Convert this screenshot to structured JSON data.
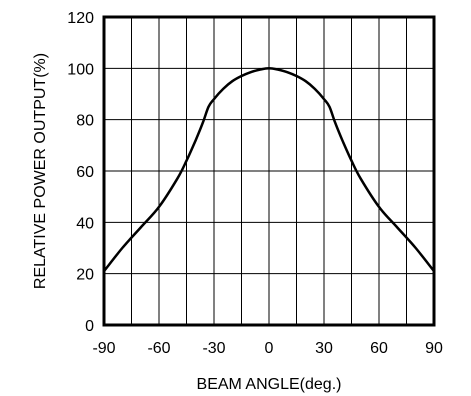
{
  "chart_data": {
    "type": "line",
    "title": "",
    "xlabel": "BEAM ANGLE(deg.)",
    "ylabel": "RELATIVE POWER OUTPUT(%)",
    "xlim": [
      -90,
      90
    ],
    "ylim": [
      0,
      120
    ],
    "x_ticks": [
      "-90",
      "-60",
      "-30",
      "0",
      "30",
      "60",
      "90"
    ],
    "y_ticks": [
      "0",
      "20",
      "40",
      "60",
      "80",
      "100",
      "120"
    ],
    "x_grid_step": 15,
    "y_grid_step": 20,
    "grid": true,
    "series": [
      {
        "x": [
          -90,
          -80,
          -70,
          -60,
          -50,
          -45,
          -40,
          -36,
          -33,
          -30,
          -25,
          -20,
          -15,
          -10,
          -5,
          0,
          5,
          10,
          15,
          20,
          25,
          30,
          33,
          36,
          40,
          45,
          50,
          60,
          70,
          80,
          90
        ],
        "y": [
          21,
          30,
          38,
          46,
          57,
          64,
          72,
          79,
          85,
          88,
          92,
          95,
          97,
          98.5,
          99.5,
          100,
          99.5,
          98.5,
          97,
          95,
          92,
          88,
          85,
          79,
          72,
          64,
          57,
          46,
          38,
          30,
          21
        ],
        "color": "#000000"
      }
    ]
  }
}
